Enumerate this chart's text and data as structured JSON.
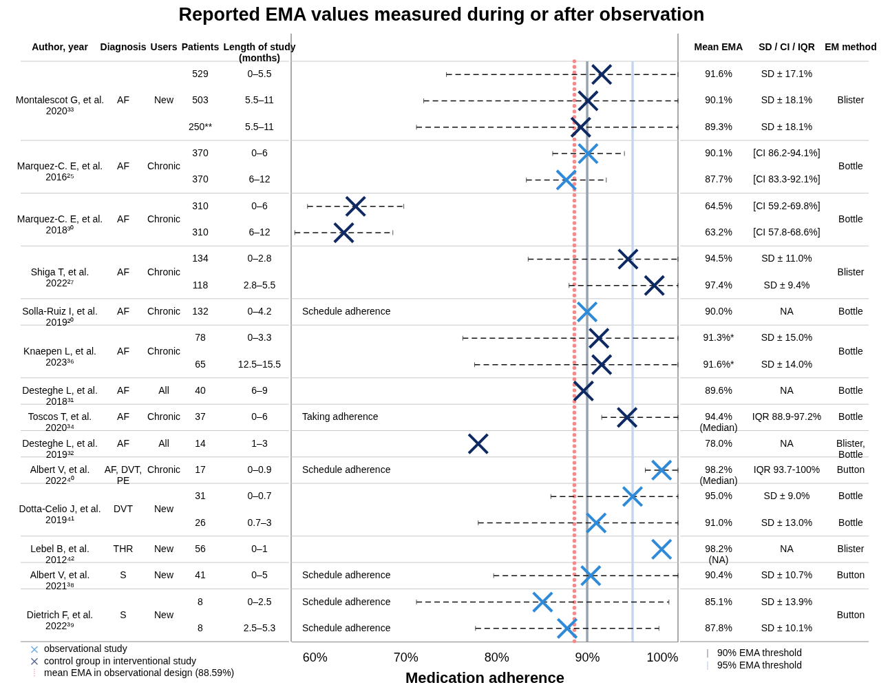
{
  "chart_data": {
    "type": "scatter",
    "orientation": "horizontal",
    "title": "Reported EMA values measured during or after observation",
    "xlabel": "Medication adherence",
    "ylabel": "Patients",
    "categories": [
      "529",
      "503",
      "250**",
      "370",
      "370",
      "310",
      "310",
      "134",
      "118",
      "132",
      "78",
      "65",
      "40",
      "37",
      "14",
      "17",
      "31",
      "26",
      "56",
      "41",
      "8",
      "8"
    ],
    "xlim": [
      57.4,
      100
    ],
    "xticks": [
      {
        "value": 60,
        "label": "60%"
      },
      {
        "value": 70,
        "label": "70%"
      },
      {
        "value": 80,
        "label": "80%"
      },
      {
        "value": 90,
        "label": "90%"
      },
      {
        "value": 100,
        "label": "100%"
      }
    ],
    "marker": "cross",
    "legend": "bottom left",
    "series": [
      {
        "name": "observational study",
        "color": "#2f8ad8",
        "values": [
          null,
          null,
          null,
          90.1,
          87.7,
          null,
          null,
          null,
          null,
          90.0,
          null,
          null,
          null,
          null,
          null,
          98.2,
          95.0,
          91.0,
          98.2,
          90.4,
          85.1,
          87.8
        ],
        "errors": [
          null,
          null,
          null,
          [
            86.2,
            94.1
          ],
          [
            83.3,
            92.1
          ],
          null,
          null,
          null,
          null,
          null,
          null,
          null,
          null,
          null,
          null,
          [
            96.4,
            100
          ],
          [
            86.0,
            100
          ],
          [
            78.0,
            100
          ],
          null,
          [
            79.7,
            100
          ],
          [
            71.2,
            99.0
          ],
          [
            77.7,
            97.9
          ]
        ]
      },
      {
        "name": "control group in interventional study",
        "color": "#0f2a62",
        "values": [
          91.6,
          90.1,
          89.3,
          null,
          null,
          64.5,
          63.2,
          94.5,
          97.4,
          null,
          91.3,
          91.6,
          89.6,
          94.4,
          78.0,
          null,
          null,
          null,
          null,
          null,
          null,
          null
        ],
        "errors": [
          [
            74.5,
            100
          ],
          [
            72.0,
            100
          ],
          [
            71.2,
            100
          ],
          null,
          null,
          [
            59.2,
            69.8
          ],
          [
            57.8,
            68.6
          ],
          [
            83.5,
            100
          ],
          [
            88.0,
            100
          ],
          null,
          [
            76.3,
            100
          ],
          [
            77.6,
            100
          ],
          null,
          [
            91.6,
            100
          ],
          null,
          null,
          null,
          null,
          null,
          null,
          null,
          null
        ]
      }
    ],
    "ref_lines": [
      {
        "axis": "x",
        "value": 88.59,
        "label": "mean EMA in observational design (88.59%)",
        "color": "#f28b8b",
        "line_style": "dotted"
      },
      {
        "axis": "x",
        "value": 90,
        "label": "90% EMA threshold",
        "color": "#9aa3b0",
        "line_style": "solid"
      },
      {
        "axis": "x",
        "value": 95,
        "label": "95% EMA threshold",
        "color": "#c5d6f0",
        "line_style": "solid"
      }
    ],
    "annotations": [
      "Author, year",
      "Diagnosis",
      "Users",
      "Length of study (months)",
      "Mean EMA",
      "SD / CI / IQR",
      "EM method",
      "Montalescot G, et al. 2020³³",
      "AF",
      "New",
      "Marquez-C. E, et al. 2016²⁵",
      "AF",
      "Chronic",
      "Marquez-C. E, et al. 2018³⁰",
      "AF",
      "Chronic",
      "Shiga T, et al. 2022²⁷",
      "AF",
      "Chronic",
      "Solla-Ruiz I, et al. 2019²⁰",
      "AF",
      "Chronic",
      "Knaepen L, et al. 2023³⁶",
      "AF",
      "Chronic",
      "Desteghe L, et al. 2018³¹",
      "AF",
      "All",
      "Toscos T, et al. 2020³⁴",
      "AF",
      "Chronic",
      "Desteghe L, et al. 2019³²",
      "AF",
      "All",
      "Albert V, et al. 2022⁴⁰",
      "AF, DVT, PE",
      "Chronic",
      "Dotta-Celio J, et al. 2019⁴¹",
      "DVT",
      "New",
      "Lebel B, et al. 2012⁴²",
      "THR",
      "New",
      "Albert V, et al. 2021³⁸",
      "S",
      "New",
      "Dietrich F, et al. 2022³⁹",
      "S",
      "New",
      "0–5.5",
      "5.5–11",
      "5.5–11",
      "0–6",
      "6–12",
      "0–6",
      "6–12",
      "0–2.8",
      "2.8–5.5",
      "0–4.2",
      "0–3.3",
      "12.5–15.5",
      "6–9",
      "0–6",
      "1–3",
      "0–0.9",
      "0–0.7",
      "0.7–3",
      "0–1",
      "0–5",
      "0–2.5",
      "2.5–5.3",
      "Schedule adherence",
      "Taking adherence",
      "Schedule adherence",
      "Schedule adherence",
      "Schedule adherence",
      "Schedule adherence",
      "SD ± 17.1%",
      "SD ± 18.1%",
      "SD ± 18.1%",
      "[CI 86.2-94.1%]",
      "[CI 83.3-92.1%]",
      "[CI 59.2-69.8%]",
      "[CI 57.8-68.6%]",
      "SD ± 11.0%",
      "SD ± 9.4%",
      "NA",
      "SD ± 15.0%",
      "SD ± 14.0%",
      "NA",
      "IQR 88.9-97.2%",
      "NA",
      "IQR 93.7-100%",
      "SD ± 9.0%",
      "SD ± 13.0%",
      "NA",
      "SD ± 10.7%",
      "SD ± 13.9%",
      "SD ± 10.1%",
      "Blister",
      "Bottle",
      "Bottle",
      "Blister",
      "Bottle",
      "Bottle",
      "Bottle",
      "Bottle",
      "Blister, Bottle",
      "Button",
      "Bottle",
      "Bottle",
      "Blister",
      "Button",
      "Button",
      "91.6%",
      "90.1%",
      "89.3%",
      "90.1%",
      "87.7%",
      "64.5%",
      "63.2%",
      "94.5%",
      "97.4%",
      "90.0%",
      "91.3%*",
      "91.6%*",
      "89.6%",
      "94.4% (Median)",
      "78.0%",
      "98.2% (Median)",
      "95.0%",
      "91.0%",
      "98.2% (NA)",
      "90.4%",
      "85.1%",
      "87.8%"
    ]
  }
}
